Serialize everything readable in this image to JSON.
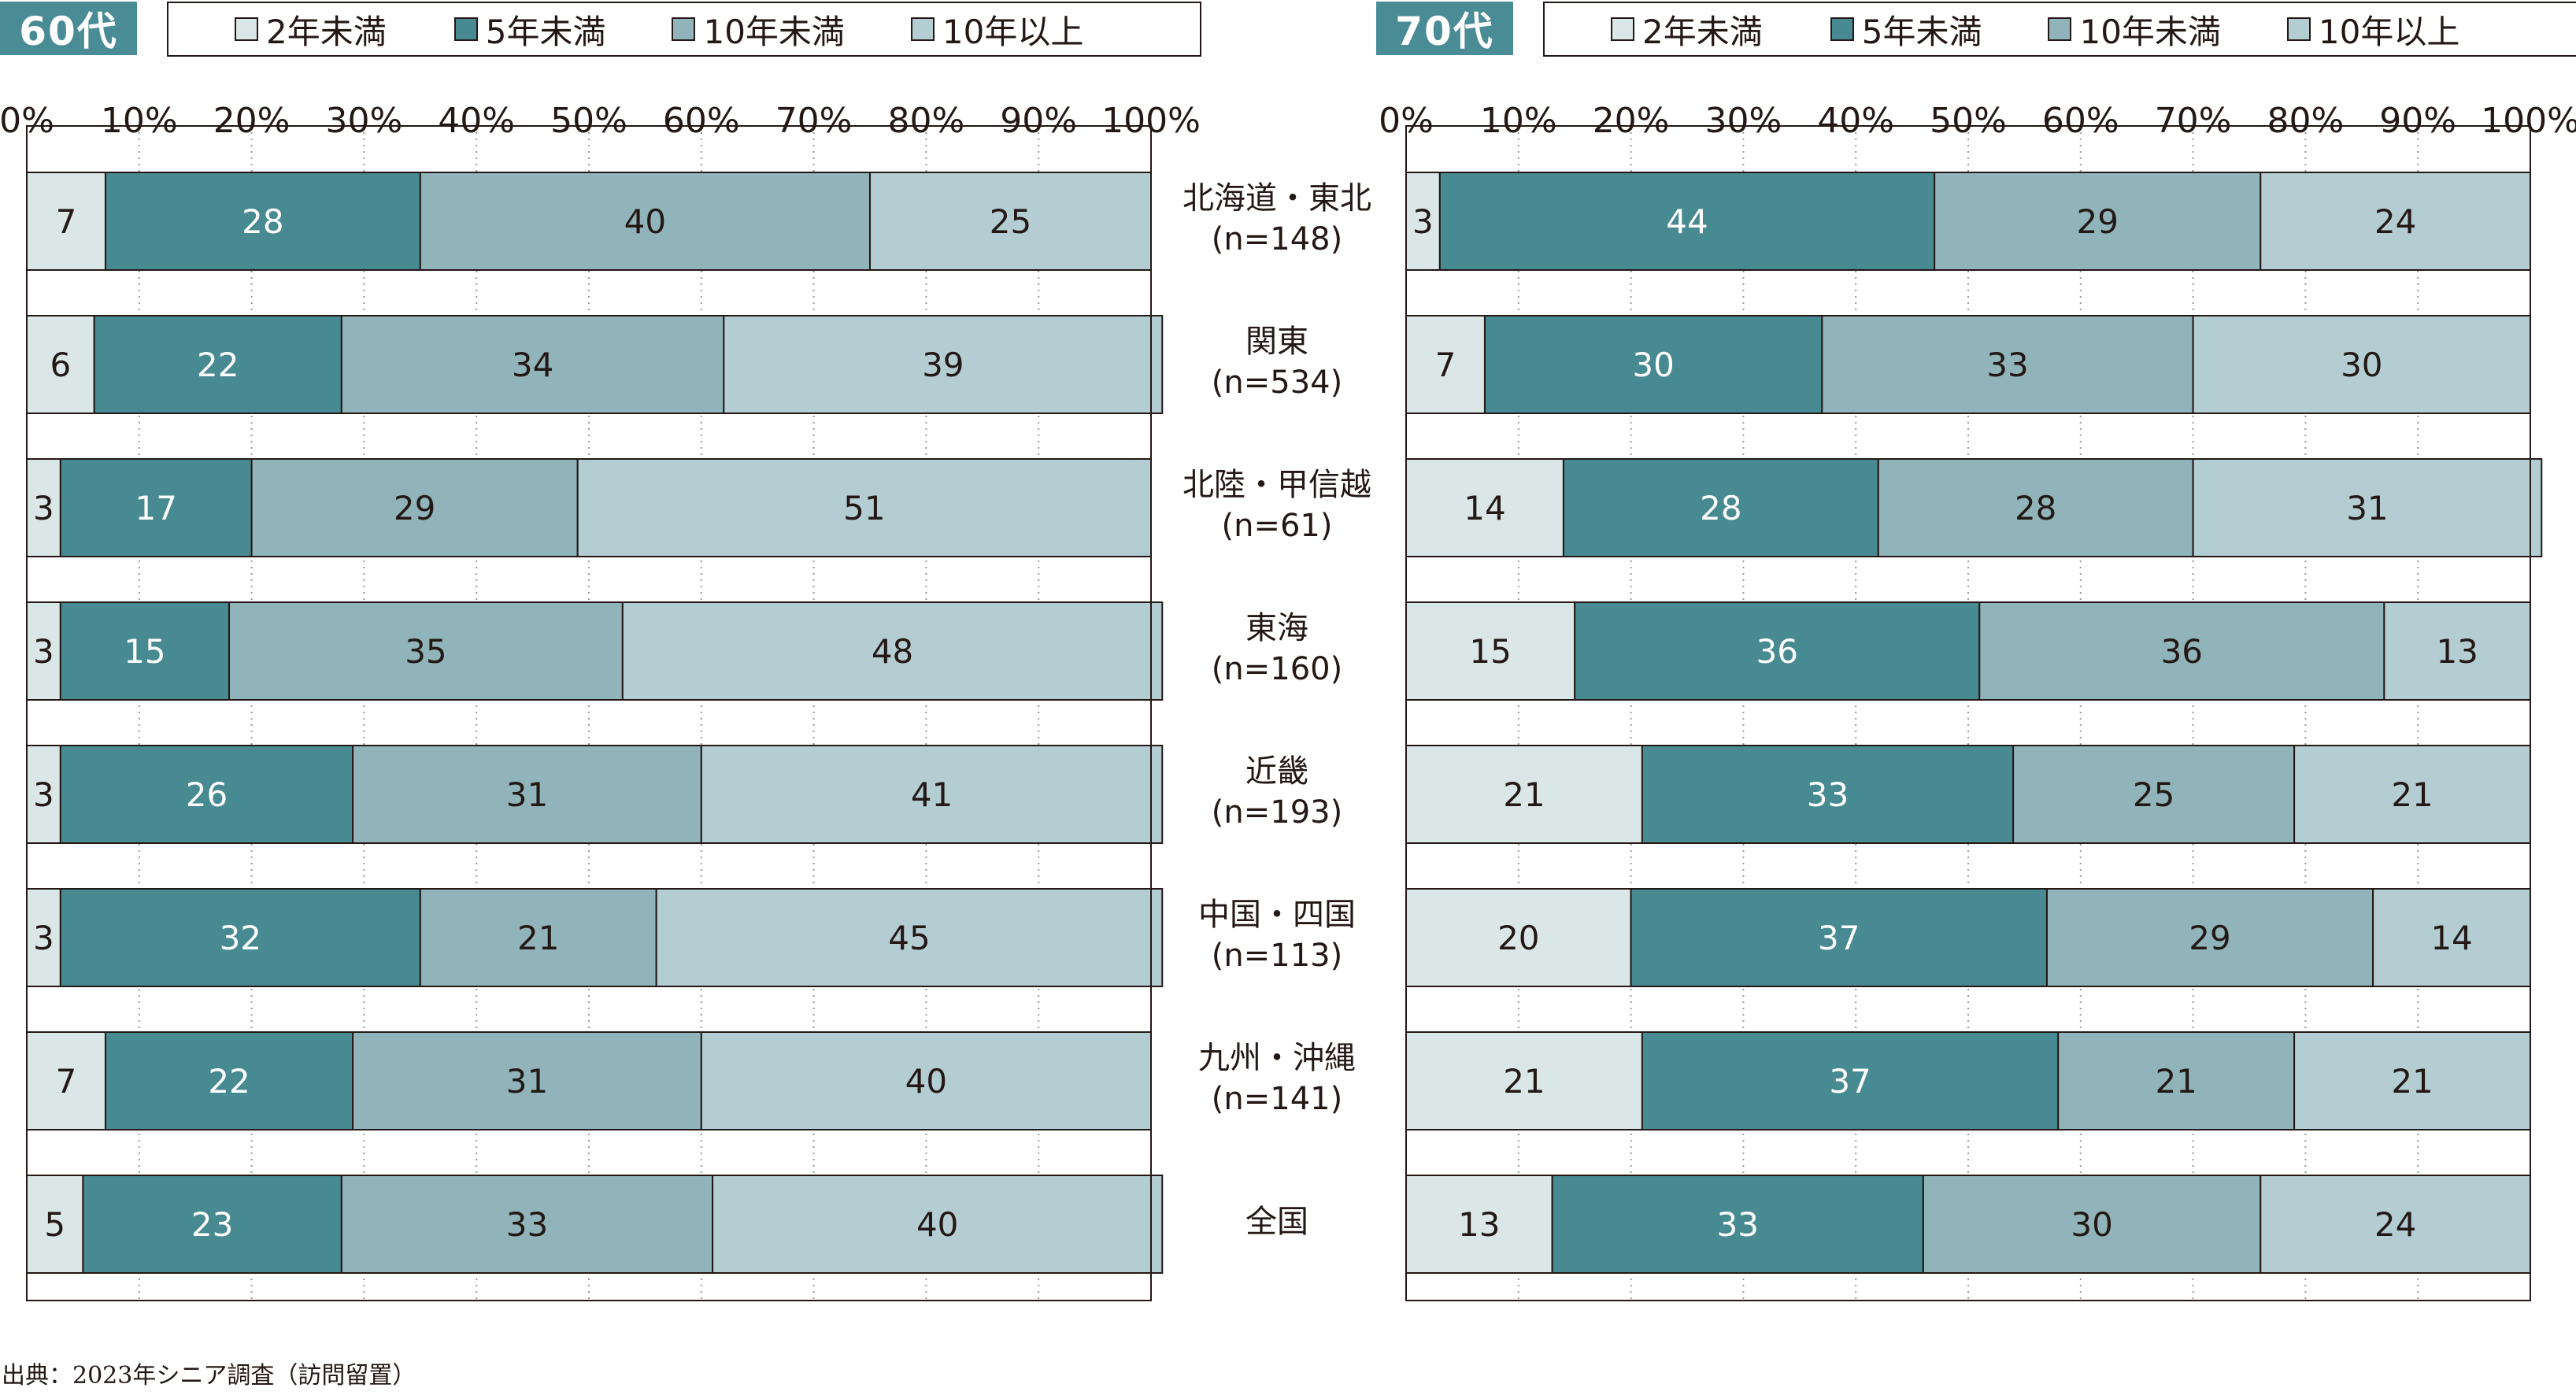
{
  "source": "出典：2023年シニア調査（訪問留置）",
  "colors": [
    "#dbe6e7",
    "#488a92",
    "#90b4b9",
    "#b3cdd2"
  ],
  "chart_data": [
    {
      "type": "bar",
      "orientation": "horizontal",
      "stacked": true,
      "title": "60代",
      "categories": [
        "北海道・東北",
        "関東",
        "北陸・甲信越",
        "東海",
        "近畿",
        "中国・四国",
        "九州・沖縄",
        "全国"
      ],
      "category_n": [
        "(n=148)",
        "(n=534)",
        "(n=61)",
        "(n=160)",
        "(n=193)",
        "(n=113)",
        "(n=141)",
        ""
      ],
      "xlim": [
        0,
        100
      ],
      "x_ticks": [
        "0%",
        "10%",
        "20%",
        "30%",
        "40%",
        "50%",
        "60%",
        "70%",
        "80%",
        "90%",
        "100%"
      ],
      "legend_position": "top",
      "grid": true,
      "series": [
        {
          "name": "2年未満",
          "values": [
            7,
            6,
            3,
            3,
            3,
            3,
            7,
            5
          ]
        },
        {
          "name": "5年未満",
          "values": [
            28,
            22,
            17,
            15,
            26,
            32,
            22,
            23
          ]
        },
        {
          "name": "10年未満",
          "values": [
            40,
            34,
            29,
            35,
            31,
            21,
            31,
            33
          ]
        },
        {
          "name": "10年以上",
          "values": [
            25,
            39,
            51,
            48,
            41,
            45,
            40,
            40
          ]
        }
      ]
    },
    {
      "type": "bar",
      "orientation": "horizontal",
      "stacked": true,
      "title": "70代",
      "categories": [
        "北海道・東北",
        "関東",
        "北陸・甲信越",
        "東海",
        "近畿",
        "中国・四国",
        "九州・沖縄",
        "全国"
      ],
      "xlim": [
        0,
        100
      ],
      "x_ticks": [
        "0%",
        "10%",
        "20%",
        "30%",
        "40%",
        "50%",
        "60%",
        "70%",
        "80%",
        "90%",
        "100%"
      ],
      "legend_position": "top",
      "grid": true,
      "series": [
        {
          "name": "2年未満",
          "values": [
            3,
            7,
            14,
            15,
            21,
            20,
            21,
            13
          ]
        },
        {
          "name": "5年未満",
          "values": [
            44,
            30,
            28,
            36,
            33,
            37,
            37,
            33
          ]
        },
        {
          "name": "10年未満",
          "values": [
            29,
            33,
            28,
            36,
            25,
            29,
            21,
            30
          ]
        },
        {
          "name": "10年以上",
          "values": [
            24,
            30,
            31,
            13,
            21,
            14,
            21,
            24
          ]
        }
      ]
    }
  ]
}
